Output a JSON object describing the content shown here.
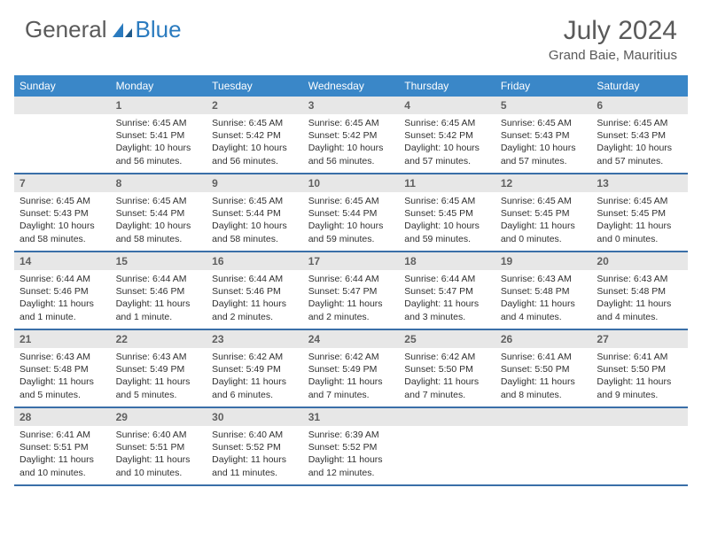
{
  "brand": {
    "part1": "General",
    "part2": "Blue",
    "text_color": "#5a5a5a",
    "accent_color": "#2b7bbf"
  },
  "title": "July 2024",
  "location": "Grand Baie, Mauritius",
  "colors": {
    "header_bg": "#3a87c8",
    "header_text": "#ffffff",
    "daynum_bg": "#e7e7e7",
    "daynum_text": "#606060",
    "week_border": "#3a6fa8",
    "body_text": "#303030"
  },
  "day_labels": [
    "Sunday",
    "Monday",
    "Tuesday",
    "Wednesday",
    "Thursday",
    "Friday",
    "Saturday"
  ],
  "weeks": [
    [
      null,
      {
        "n": "1",
        "sr": "Sunrise: 6:45 AM",
        "ss": "Sunset: 5:41 PM",
        "dl": "Daylight: 10 hours and 56 minutes."
      },
      {
        "n": "2",
        "sr": "Sunrise: 6:45 AM",
        "ss": "Sunset: 5:42 PM",
        "dl": "Daylight: 10 hours and 56 minutes."
      },
      {
        "n": "3",
        "sr": "Sunrise: 6:45 AM",
        "ss": "Sunset: 5:42 PM",
        "dl": "Daylight: 10 hours and 56 minutes."
      },
      {
        "n": "4",
        "sr": "Sunrise: 6:45 AM",
        "ss": "Sunset: 5:42 PM",
        "dl": "Daylight: 10 hours and 57 minutes."
      },
      {
        "n": "5",
        "sr": "Sunrise: 6:45 AM",
        "ss": "Sunset: 5:43 PM",
        "dl": "Daylight: 10 hours and 57 minutes."
      },
      {
        "n": "6",
        "sr": "Sunrise: 6:45 AM",
        "ss": "Sunset: 5:43 PM",
        "dl": "Daylight: 10 hours and 57 minutes."
      }
    ],
    [
      {
        "n": "7",
        "sr": "Sunrise: 6:45 AM",
        "ss": "Sunset: 5:43 PM",
        "dl": "Daylight: 10 hours and 58 minutes."
      },
      {
        "n": "8",
        "sr": "Sunrise: 6:45 AM",
        "ss": "Sunset: 5:44 PM",
        "dl": "Daylight: 10 hours and 58 minutes."
      },
      {
        "n": "9",
        "sr": "Sunrise: 6:45 AM",
        "ss": "Sunset: 5:44 PM",
        "dl": "Daylight: 10 hours and 58 minutes."
      },
      {
        "n": "10",
        "sr": "Sunrise: 6:45 AM",
        "ss": "Sunset: 5:44 PM",
        "dl": "Daylight: 10 hours and 59 minutes."
      },
      {
        "n": "11",
        "sr": "Sunrise: 6:45 AM",
        "ss": "Sunset: 5:45 PM",
        "dl": "Daylight: 10 hours and 59 minutes."
      },
      {
        "n": "12",
        "sr": "Sunrise: 6:45 AM",
        "ss": "Sunset: 5:45 PM",
        "dl": "Daylight: 11 hours and 0 minutes."
      },
      {
        "n": "13",
        "sr": "Sunrise: 6:45 AM",
        "ss": "Sunset: 5:45 PM",
        "dl": "Daylight: 11 hours and 0 minutes."
      }
    ],
    [
      {
        "n": "14",
        "sr": "Sunrise: 6:44 AM",
        "ss": "Sunset: 5:46 PM",
        "dl": "Daylight: 11 hours and 1 minute."
      },
      {
        "n": "15",
        "sr": "Sunrise: 6:44 AM",
        "ss": "Sunset: 5:46 PM",
        "dl": "Daylight: 11 hours and 1 minute."
      },
      {
        "n": "16",
        "sr": "Sunrise: 6:44 AM",
        "ss": "Sunset: 5:46 PM",
        "dl": "Daylight: 11 hours and 2 minutes."
      },
      {
        "n": "17",
        "sr": "Sunrise: 6:44 AM",
        "ss": "Sunset: 5:47 PM",
        "dl": "Daylight: 11 hours and 2 minutes."
      },
      {
        "n": "18",
        "sr": "Sunrise: 6:44 AM",
        "ss": "Sunset: 5:47 PM",
        "dl": "Daylight: 11 hours and 3 minutes."
      },
      {
        "n": "19",
        "sr": "Sunrise: 6:43 AM",
        "ss": "Sunset: 5:48 PM",
        "dl": "Daylight: 11 hours and 4 minutes."
      },
      {
        "n": "20",
        "sr": "Sunrise: 6:43 AM",
        "ss": "Sunset: 5:48 PM",
        "dl": "Daylight: 11 hours and 4 minutes."
      }
    ],
    [
      {
        "n": "21",
        "sr": "Sunrise: 6:43 AM",
        "ss": "Sunset: 5:48 PM",
        "dl": "Daylight: 11 hours and 5 minutes."
      },
      {
        "n": "22",
        "sr": "Sunrise: 6:43 AM",
        "ss": "Sunset: 5:49 PM",
        "dl": "Daylight: 11 hours and 5 minutes."
      },
      {
        "n": "23",
        "sr": "Sunrise: 6:42 AM",
        "ss": "Sunset: 5:49 PM",
        "dl": "Daylight: 11 hours and 6 minutes."
      },
      {
        "n": "24",
        "sr": "Sunrise: 6:42 AM",
        "ss": "Sunset: 5:49 PM",
        "dl": "Daylight: 11 hours and 7 minutes."
      },
      {
        "n": "25",
        "sr": "Sunrise: 6:42 AM",
        "ss": "Sunset: 5:50 PM",
        "dl": "Daylight: 11 hours and 7 minutes."
      },
      {
        "n": "26",
        "sr": "Sunrise: 6:41 AM",
        "ss": "Sunset: 5:50 PM",
        "dl": "Daylight: 11 hours and 8 minutes."
      },
      {
        "n": "27",
        "sr": "Sunrise: 6:41 AM",
        "ss": "Sunset: 5:50 PM",
        "dl": "Daylight: 11 hours and 9 minutes."
      }
    ],
    [
      {
        "n": "28",
        "sr": "Sunrise: 6:41 AM",
        "ss": "Sunset: 5:51 PM",
        "dl": "Daylight: 11 hours and 10 minutes."
      },
      {
        "n": "29",
        "sr": "Sunrise: 6:40 AM",
        "ss": "Sunset: 5:51 PM",
        "dl": "Daylight: 11 hours and 10 minutes."
      },
      {
        "n": "30",
        "sr": "Sunrise: 6:40 AM",
        "ss": "Sunset: 5:52 PM",
        "dl": "Daylight: 11 hours and 11 minutes."
      },
      {
        "n": "31",
        "sr": "Sunrise: 6:39 AM",
        "ss": "Sunset: 5:52 PM",
        "dl": "Daylight: 11 hours and 12 minutes."
      },
      null,
      null,
      null
    ]
  ]
}
